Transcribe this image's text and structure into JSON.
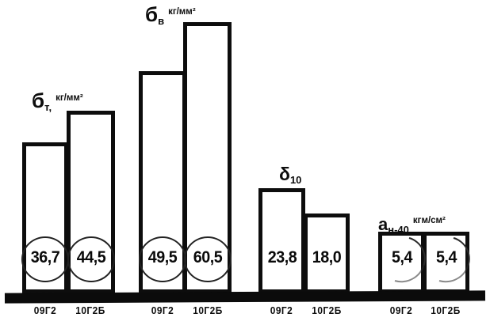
{
  "figure": {
    "background": "#ffffff",
    "ink": "#0d0d0d"
  },
  "chart_data": {
    "type": "bar",
    "categories": [
      "09Г2",
      "10Г2Б"
    ],
    "groups": [
      {
        "id": "sigma-t",
        "symbol": "б",
        "symbol_sub": "т,",
        "unit": "кг/мм²",
        "values": [
          36.7,
          44.5
        ],
        "value_labels": [
          "36,7",
          "44,5"
        ],
        "circled": [
          "full",
          "full"
        ]
      },
      {
        "id": "sigma-v",
        "symbol": "б",
        "symbol_sub": "в",
        "unit": "кг/мм²",
        "values": [
          49.5,
          60.5
        ],
        "value_labels": [
          "49,5",
          "60,5"
        ],
        "circled": [
          "full",
          "full"
        ]
      },
      {
        "id": "delta-10",
        "symbol": "δ",
        "symbol_sub": "10",
        "unit": "",
        "values": [
          23.8,
          18.0
        ],
        "value_labels": [
          "23,8",
          "18,0"
        ],
        "circled": [
          "none",
          "none"
        ]
      },
      {
        "id": "a-n-40",
        "symbol": "а",
        "symbol_sub": "н-40",
        "unit": "кгм/см²",
        "values": [
          5.4,
          5.4
        ],
        "value_labels": [
          "5,4",
          "5,4"
        ],
        "circled": [
          "arc",
          "arc"
        ]
      }
    ],
    "x_tick_labels": [
      "09Г2",
      "10Г2Б",
      "09Г2",
      "10Г2Б",
      "09Г2",
      "10Г2Б",
      "09Г2",
      "10Г2Б"
    ],
    "grid": false,
    "legend": "none",
    "axes": "baseline-only",
    "ylim_px_scales_note": ""
  }
}
